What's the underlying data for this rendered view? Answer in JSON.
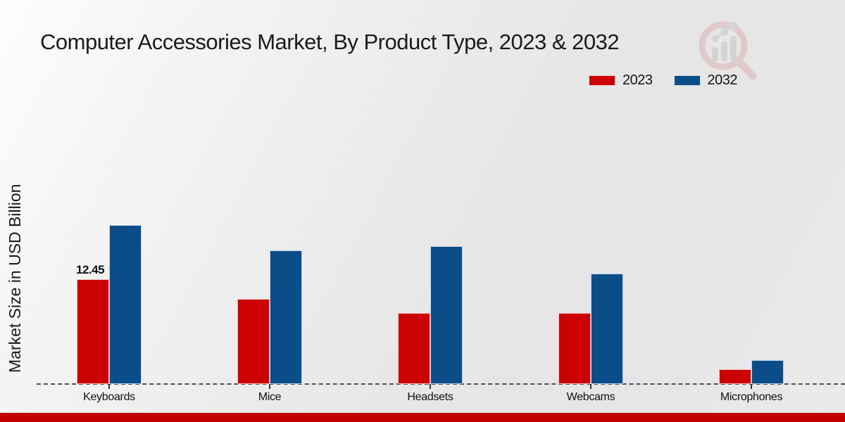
{
  "title": "Computer Accessories Market, By Product Type, 2023 & 2032",
  "logo_icon": "magnifier-bar-chart-icon",
  "colors": {
    "series_2023": "#cc0202",
    "series_2032": "#0a4d89",
    "footer_stripe": "#c20101",
    "axis_line": "#4f4f4f",
    "text": "#1a1a1a",
    "watermark_ring": "#d9aeb0",
    "watermark_bars": "#c3c3c3"
  },
  "chart_data": {
    "type": "bar",
    "title": "Computer Accessories Market, By Product Type, 2023 & 2032",
    "xlabel": "",
    "ylabel": "Market Size in USD Billion",
    "categories": [
      "Keyboards",
      "Mice",
      "Headsets",
      "Webcams",
      "Microphones"
    ],
    "series": [
      {
        "name": "2023",
        "color": "#cc0202",
        "values": [
          12.45,
          10.1,
          8.45,
          8.45,
          1.75
        ]
      },
      {
        "name": "2032",
        "color": "#0a4d89",
        "values": [
          18.8,
          15.85,
          16.35,
          13.05,
          2.8
        ]
      }
    ],
    "annotations": [
      {
        "series": "2023",
        "category": "Keyboards",
        "text": "12.45"
      }
    ],
    "ylim": [
      0,
      21.5
    ],
    "grid": false,
    "y_ticks_visible": false,
    "legend_position": "top-right",
    "baseline_style": "dashed"
  }
}
